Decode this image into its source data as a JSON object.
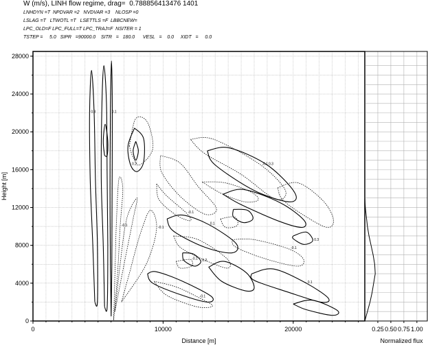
{
  "header": {
    "title": "W (m/s), LINH flow regime, drag=  0.788856413476 1401",
    "lines": [
      "LNHDYN =T  NPDVAR =2   NVDVAR =3    NLOSP =0",
      "LSLAG =T   LTWOTL =T   LSETTLS =F  LBBCNEW=",
      "LPC_OLD=F LPC_FULL=T LPC_TRAJ=F  NSITER = 1",
      "TSTEP =     5.0   SIPR   =90000.0    SITR   =   180.0      VESL   =    0.0     XIDT   =     0.0"
    ]
  },
  "chart_data": [
    {
      "type": "contour",
      "title": "W (m/s), LINH flow regime, drag=  0.788856413476 1401",
      "xlabel": "Distance [m]",
      "ylabel": "Height [m]",
      "xlim": [
        0,
        25500
      ],
      "ylim": [
        0,
        28500
      ],
      "xticks": [
        0,
        10000,
        20000
      ],
      "yticks": [
        0,
        4000,
        8000,
        12000,
        16000,
        20000,
        24000,
        28000
      ],
      "grid": true,
      "contour_labels": [
        "0.1",
        "0.2",
        "0.3",
        "-0.1",
        "-0.2"
      ],
      "contours": [
        {
          "sign": "positive",
          "points": [
            [
              6010,
              500
            ],
            [
              5950,
              6000
            ],
            [
              5920,
              14000
            ],
            [
              5950,
              22000
            ],
            [
              6030,
              27500
            ],
            [
              6100,
              22000
            ],
            [
              6080,
              14000
            ],
            [
              6060,
              6000
            ],
            [
              6010,
              500
            ]
          ]
        },
        {
          "sign": "positive",
          "points": [
            [
              5500,
              1500
            ],
            [
              5400,
              8000
            ],
            [
              5250,
              15000
            ],
            [
              5300,
              23000
            ],
            [
              5450,
              27000
            ],
            [
              5650,
              23000
            ],
            [
              5700,
              15000
            ],
            [
              5750,
              8000
            ],
            [
              5700,
              1500
            ],
            [
              5500,
              1500
            ]
          ]
        },
        {
          "sign": "positive",
          "points": [
            [
              4750,
              2000
            ],
            [
              4600,
              8000
            ],
            [
              4400,
              15000
            ],
            [
              4350,
              22000
            ],
            [
              4500,
              26500
            ],
            [
              4700,
              22000
            ],
            [
              4800,
              15000
            ],
            [
              4950,
              8000
            ],
            [
              4950,
              2000
            ],
            [
              4750,
              2000
            ]
          ]
        },
        {
          "sign": "positive",
          "points": [
            [
              5500,
              17500
            ],
            [
              5400,
              19000
            ],
            [
              5550,
              20800
            ],
            [
              5750,
              19000
            ],
            [
              5700,
              17500
            ],
            [
              5500,
              17500
            ]
          ]
        },
        {
          "sign": "positive",
          "points": [
            [
              7800,
              20400
            ],
            [
              7300,
              18500
            ],
            [
              7500,
              16500
            ],
            [
              8000,
              15800
            ],
            [
              8500,
              16800
            ],
            [
              8500,
              19300
            ],
            [
              7800,
              20400
            ]
          ]
        },
        {
          "sign": "positive",
          "points": [
            [
              7900,
              19000
            ],
            [
              7700,
              18000
            ],
            [
              7900,
              17000
            ],
            [
              8100,
              18000
            ],
            [
              7900,
              19000
            ]
          ]
        },
        {
          "sign": "positive",
          "points": [
            [
              10300,
              10800
            ],
            [
              11500,
              11200
            ],
            [
              13500,
              10200
            ],
            [
              15600,
              8200
            ],
            [
              15300,
              7200
            ],
            [
              13200,
              7800
            ],
            [
              10800,
              9500
            ],
            [
              10300,
              10800
            ]
          ]
        },
        {
          "sign": "positive",
          "points": [
            [
              14600,
              13400
            ],
            [
              16200,
              13900
            ],
            [
              19000,
              12500
            ],
            [
              20800,
              10700
            ],
            [
              20700,
              9900
            ],
            [
              19000,
              10500
            ],
            [
              16000,
              12300
            ],
            [
              14600,
              13400
            ]
          ]
        },
        {
          "sign": "positive",
          "points": [
            [
              13400,
              18000
            ],
            [
              15100,
              18300
            ],
            [
              18000,
              16500
            ],
            [
              20100,
              13600
            ],
            [
              19700,
              12600
            ],
            [
              17000,
              13800
            ],
            [
              14000,
              16500
            ],
            [
              13400,
              18000
            ]
          ]
        },
        {
          "sign": "positive",
          "points": [
            [
              8800,
              5000
            ],
            [
              9500,
              5200
            ],
            [
              11500,
              4200
            ],
            [
              13700,
              2600
            ],
            [
              13400,
              2000
            ],
            [
              11300,
              2800
            ],
            [
              9200,
              4000
            ],
            [
              8800,
              5000
            ]
          ]
        },
        {
          "sign": "positive",
          "points": [
            [
              11500,
              7200
            ],
            [
              12300,
              7100
            ],
            [
              12900,
              6300
            ],
            [
              12400,
              5800
            ],
            [
              11600,
              6400
            ],
            [
              11500,
              7200
            ]
          ]
        },
        {
          "sign": "positive",
          "points": [
            [
              15400,
              11800
            ],
            [
              16500,
              11700
            ],
            [
              16900,
              10800
            ],
            [
              16200,
              10400
            ],
            [
              15400,
              11000
            ],
            [
              15400,
              11800
            ]
          ]
        },
        {
          "sign": "positive",
          "points": [
            [
              16800,
              5000
            ],
            [
              18500,
              5500
            ],
            [
              21000,
              4000
            ],
            [
              22700,
              2400
            ],
            [
              22100,
              2000
            ],
            [
              19500,
              3100
            ],
            [
              17000,
              4300
            ],
            [
              16800,
              5000
            ]
          ]
        },
        {
          "sign": "positive",
          "points": [
            [
              13500,
              5700
            ],
            [
              14700,
              6300
            ],
            [
              16400,
              5100
            ],
            [
              17000,
              3500
            ],
            [
              16300,
              3200
            ],
            [
              14500,
              4200
            ],
            [
              13500,
              5700
            ]
          ]
        },
        {
          "sign": "positive",
          "points": [
            [
              20000,
              9000
            ],
            [
              21000,
              9400
            ],
            [
              21500,
              8500
            ],
            [
              20800,
              8100
            ],
            [
              20000,
              8700
            ],
            [
              20000,
              9000
            ]
          ]
        },
        {
          "sign": "positive",
          "points": [
            [
              20000,
              1800
            ],
            [
              21500,
              2200
            ],
            [
              23400,
              1100
            ],
            [
              23000,
              600
            ],
            [
              21000,
              1200
            ],
            [
              20000,
              1800
            ]
          ]
        },
        {
          "sign": "negative",
          "points": [
            [
              6200,
              100
            ],
            [
              6500,
              5000
            ],
            [
              6700,
              10000
            ],
            [
              6900,
              14000
            ],
            [
              6600,
              15000
            ],
            [
              6400,
              10000
            ],
            [
              6300,
              5000
            ],
            [
              6200,
              100
            ]
          ]
        },
        {
          "sign": "negative",
          "points": [
            [
              6300,
              1000
            ],
            [
              7000,
              6000
            ],
            [
              7700,
              10800
            ],
            [
              8000,
              13000
            ],
            [
              7200,
              10800
            ],
            [
              6700,
              6000
            ],
            [
              6300,
              1000
            ]
          ]
        },
        {
          "sign": "negative",
          "points": [
            [
              6800,
              2000
            ],
            [
              8700,
              6000
            ],
            [
              9500,
              9800
            ],
            [
              9000,
              11700
            ],
            [
              8200,
              9000
            ],
            [
              7400,
              5000
            ],
            [
              6800,
              2000
            ]
          ]
        },
        {
          "sign": "negative",
          "points": [
            [
              9800,
              17500
            ],
            [
              11300,
              16700
            ],
            [
              12700,
              14200
            ],
            [
              14100,
              11900
            ],
            [
              13200,
              11300
            ],
            [
              11300,
              13200
            ],
            [
              9900,
              15700
            ],
            [
              9800,
              17500
            ]
          ]
        },
        {
          "sign": "negative",
          "points": [
            [
              12100,
              19200
            ],
            [
              13900,
              19200
            ],
            [
              17500,
              16500
            ],
            [
              19400,
              13800
            ],
            [
              18600,
              12900
            ],
            [
              16000,
              15500
            ],
            [
              13200,
              17700
            ],
            [
              12100,
              19200
            ]
          ]
        },
        {
          "sign": "negative",
          "points": [
            [
              13000,
              14700
            ],
            [
              14800,
              14600
            ],
            [
              16800,
              13600
            ],
            [
              17300,
              12800
            ],
            [
              16300,
              12600
            ],
            [
              14600,
              13400
            ],
            [
              13000,
              14700
            ]
          ]
        },
        {
          "sign": "negative",
          "points": [
            [
              9500,
              14500
            ],
            [
              10300,
              13200
            ],
            [
              11800,
              11400
            ],
            [
              12100,
              10600
            ],
            [
              11000,
              11200
            ],
            [
              9700,
              12800
            ],
            [
              9500,
              14500
            ]
          ]
        },
        {
          "sign": "negative",
          "points": [
            [
              10800,
              9000
            ],
            [
              12700,
              8600
            ],
            [
              14900,
              6600
            ],
            [
              15000,
              5600
            ],
            [
              13600,
              6200
            ],
            [
              11400,
              7700
            ],
            [
              10800,
              9000
            ]
          ]
        },
        {
          "sign": "negative",
          "points": [
            [
              15300,
              8600
            ],
            [
              17000,
              8600
            ],
            [
              19700,
              7600
            ],
            [
              20800,
              6500
            ],
            [
              20300,
              5800
            ],
            [
              17800,
              6600
            ],
            [
              15600,
              7800
            ],
            [
              15300,
              8600
            ]
          ]
        },
        {
          "sign": "negative",
          "points": [
            [
              18800,
              14100
            ],
            [
              20400,
              14600
            ],
            [
              22300,
              12700
            ],
            [
              23100,
              10700
            ],
            [
              22600,
              9900
            ],
            [
              20900,
              11100
            ],
            [
              19200,
              12800
            ],
            [
              18800,
              14100
            ]
          ]
        },
        {
          "sign": "negative",
          "points": [
            [
              9300,
              4200
            ],
            [
              11000,
              3600
            ],
            [
              12700,
              2500
            ],
            [
              13800,
              1600
            ],
            [
              12600,
              1500
            ],
            [
              10300,
              2700
            ],
            [
              9300,
              4200
            ]
          ]
        },
        {
          "sign": "negative",
          "points": [
            [
              7400,
              18500
            ],
            [
              7700,
              17300
            ],
            [
              8200,
              16500
            ],
            [
              9200,
              18200
            ],
            [
              8800,
              21000
            ],
            [
              7900,
              21400
            ],
            [
              7400,
              18500
            ]
          ]
        },
        {
          "sign": "negative",
          "points": [
            [
              11000,
              6300
            ],
            [
              12100,
              6500
            ],
            [
              12200,
              5800
            ],
            [
              11300,
              5600
            ],
            [
              11000,
              6300
            ]
          ]
        },
        {
          "sign": "negative",
          "points": [
            [
              14400,
              10800
            ],
            [
              15500,
              11000
            ],
            [
              15700,
              10100
            ],
            [
              14800,
              9900
            ],
            [
              14400,
              10800
            ]
          ]
        }
      ]
    },
    {
      "type": "line",
      "xlabel": "Normalized flux",
      "xlim": [
        0,
        1.2
      ],
      "ylim": [
        0,
        28500
      ],
      "xticks": [
        0.25,
        0.5,
        0.75,
        1.0
      ],
      "xticklabels": [
        "0.25",
        "0.50",
        "0.75",
        "1.00"
      ],
      "grid": true,
      "series": [
        {
          "x": [
            0.0,
            0.05,
            0.1,
            0.14,
            0.17,
            0.2,
            0.19,
            0.16,
            0.12,
            0.08,
            0.05,
            0.03,
            0.01,
            0.0,
            0.0,
            0.0
          ],
          "y": [
            0,
            1000,
            2000,
            3000,
            4000,
            5000,
            6000,
            7000,
            8000,
            9000,
            10000,
            11000,
            12000,
            13000,
            14000,
            28500
          ]
        }
      ]
    }
  ]
}
